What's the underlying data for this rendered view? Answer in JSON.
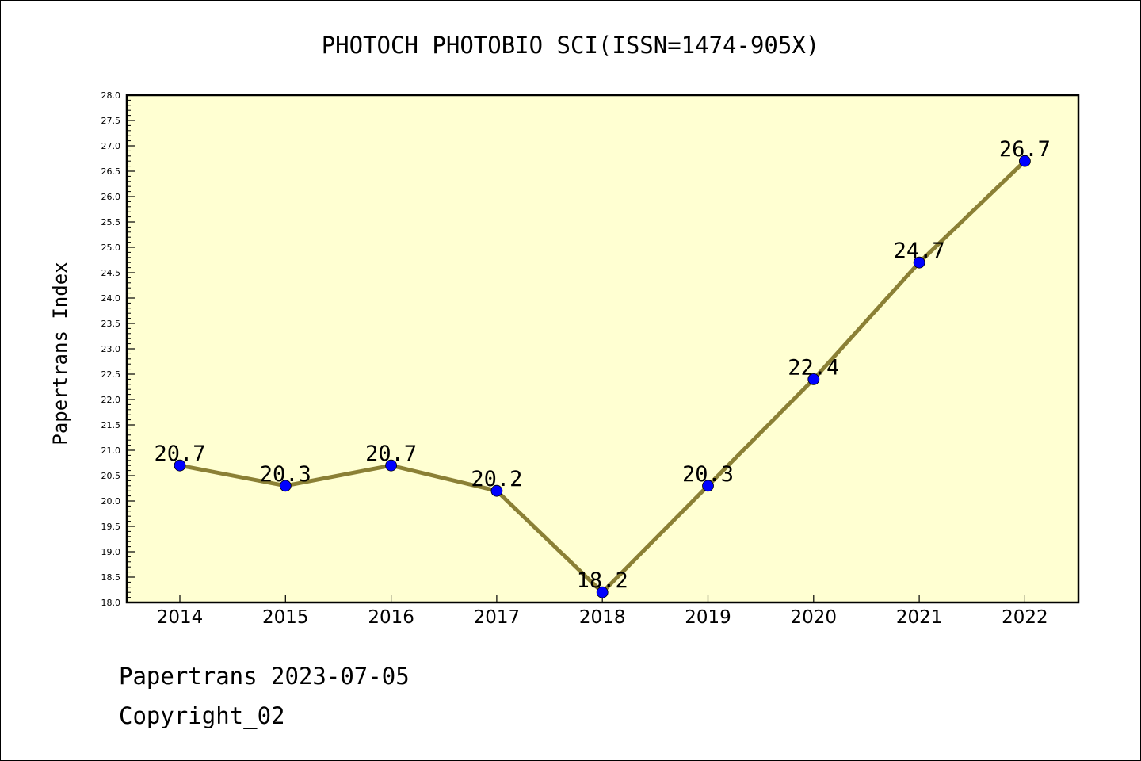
{
  "chart_data": {
    "type": "line",
    "title": "PHOTOCH PHOTOBIO SCI(ISSN=1474-905X)",
    "xlabel": "",
    "ylabel": "Papertrans Index",
    "categories": [
      "2014",
      "2015",
      "2016",
      "2017",
      "2018",
      "2019",
      "2020",
      "2021",
      "2022"
    ],
    "series": [
      {
        "values": [
          20.7,
          20.3,
          20.7,
          20.2,
          18.2,
          20.3,
          22.4,
          24.7,
          26.7
        ]
      }
    ],
    "data_labels": [
      "20.7",
      "20.3",
      "20.7",
      "20.2",
      "18.2",
      "20.3",
      "22.4",
      "24.7",
      "26.7"
    ],
    "ylim": [
      18.0,
      28.0
    ],
    "ytick_step": 0.5,
    "grid": false,
    "plot_background": "#ffffd2",
    "line_color": "#8b8035",
    "marker_color": "#0000ff"
  },
  "footer": {
    "line1": "Papertrans 2023-07-05",
    "line2": "Copyright_02"
  }
}
